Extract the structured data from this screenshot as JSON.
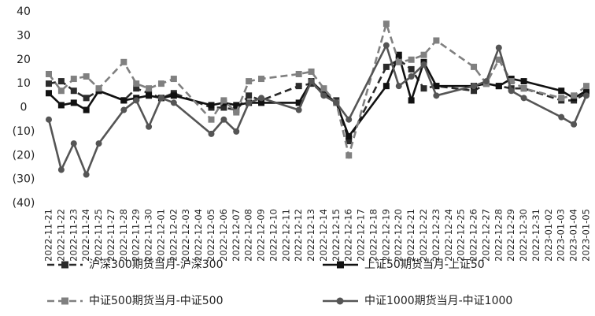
{
  "chart_data": {
    "type": "line",
    "categories": [
      "2022-11-21",
      "2022-11-22",
      "2022-11-23",
      "2022-11-24",
      "2022-11-25",
      "2022-11-27",
      "2022-11-28",
      "2022-11-29",
      "2022-11-30",
      "2022-12-01",
      "2022-12-02",
      "2022-12-03",
      "2022-12-04",
      "2022-12-05",
      "2022-12-06",
      "2022-12-07",
      "2022-12-08",
      "2022-12-09",
      "2022-12-10",
      "2022-12-11",
      "2022-12-12",
      "2022-12-13",
      "2022-12-14",
      "2022-12-15",
      "2022-12-16",
      "2022-12-17",
      "2022-12-18",
      "2022-12-19",
      "2022-12-20",
      "2022-12-21",
      "2022-12-22",
      "2022-12-23",
      "2022-12-24",
      "2022-12-25",
      "2022-12-26",
      "2022-12-27",
      "2022-12-28",
      "2022-12-29",
      "2022-12-30",
      "2022-12-31",
      "2023-01-02",
      "2023-01-03",
      "2023-01-04",
      "2023-01-05"
    ],
    "x": [
      "2022-11-21",
      "2022-11-22",
      "2022-11-23",
      "2022-11-24",
      "2022-11-25",
      "2022-11-28",
      "2022-11-29",
      "2022-11-30",
      "2022-12-01",
      "2022-12-02",
      "2022-12-05",
      "2022-12-06",
      "2022-12-07",
      "2022-12-08",
      "2022-12-09",
      "2022-12-12",
      "2022-12-13",
      "2022-12-14",
      "2022-12-15",
      "2022-12-16",
      "2022-12-19",
      "2022-12-20",
      "2022-12-21",
      "2022-12-22",
      "2022-12-23",
      "2022-12-26",
      "2022-12-27",
      "2022-12-28",
      "2022-12-29",
      "2022-12-30",
      "2023-01-03",
      "2023-01-04",
      "2023-01-05"
    ],
    "series": [
      {
        "name": "沪深300期货当月-沪深300",
        "color": "#2b2b2b",
        "dash": true,
        "marker": "square",
        "values": [
          10,
          11,
          7,
          4,
          7,
          3,
          8,
          6,
          4,
          6,
          0,
          0,
          -1,
          5,
          3,
          9,
          10,
          6,
          3,
          -14,
          17,
          20,
          16,
          8,
          9,
          7,
          10,
          9,
          8,
          8,
          3,
          3,
          6
        ]
      },
      {
        "name": "上证50期货当月-上证50",
        "color": "#111111",
        "dash": false,
        "marker": "square",
        "values": [
          6,
          1,
          2,
          -1,
          7,
          3,
          4,
          5,
          4,
          5,
          1,
          2,
          1,
          2,
          2,
          2,
          11,
          6,
          2,
          -12,
          9,
          22,
          3,
          19,
          9,
          9,
          10,
          9,
          12,
          11,
          7,
          4,
          7
        ]
      },
      {
        "name": "中证500期货当月-中证500",
        "color": "#808080",
        "dash": true,
        "marker": "square",
        "values": [
          14,
          7,
          12,
          13,
          8,
          19,
          10,
          8,
          10,
          12,
          -5,
          3,
          -2,
          11,
          12,
          14,
          15,
          8,
          2,
          -20,
          35,
          19,
          20,
          22,
          28,
          17,
          10,
          20,
          11,
          8,
          4,
          5,
          9
        ]
      },
      {
        "name": "中证1000期货当月-中证1000",
        "color": "#555555",
        "dash": false,
        "marker": "circle",
        "values": [
          -5,
          -26,
          -15,
          -28,
          -15,
          -1,
          3,
          -8,
          4,
          2,
          -11,
          -5,
          -10,
          2,
          4,
          -1,
          11,
          5,
          2,
          -5,
          26,
          9,
          13,
          18,
          5,
          9,
          11,
          25,
          7,
          4,
          -4,
          -7,
          5
        ]
      }
    ],
    "ylim": [
      -40,
      40
    ],
    "yticks": [
      {
        "value": -40,
        "label": "(40)"
      },
      {
        "value": -30,
        "label": "(30)"
      },
      {
        "value": -20,
        "label": "(20)"
      },
      {
        "value": -10,
        "label": "(10)"
      },
      0,
      10,
      20,
      30,
      40
    ],
    "legend": "bottom"
  }
}
